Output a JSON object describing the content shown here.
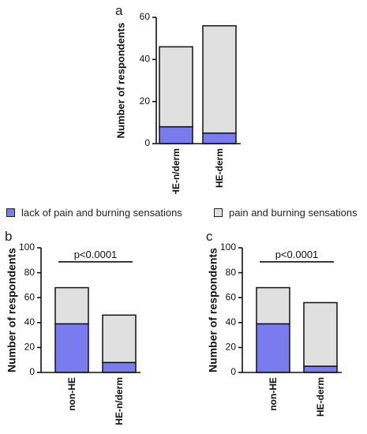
{
  "colors": {
    "lack_of_pain": "#7b7bf0",
    "pain": "#e0e0e0",
    "stroke": "#111111"
  },
  "legend": {
    "items": [
      {
        "label": "lack of pain and burning sensations",
        "color": "#7b7bf0"
      },
      {
        "label": "pain and burning sensations",
        "color": "#e0e0e0"
      }
    ]
  },
  "panel_letters": {
    "a": "a",
    "b": "b",
    "c": "c"
  },
  "chart_data": [
    {
      "id": "a",
      "type": "bar",
      "stacked": true,
      "ylabel": "Number of respondents",
      "ylim": [
        0,
        60
      ],
      "yticks": [
        0,
        20,
        40,
        60
      ],
      "categories": [
        "HE-n/derm",
        "HE-derm"
      ],
      "series": [
        {
          "name": "lack of pain and burning sensations",
          "values": [
            8,
            5
          ]
        },
        {
          "name": "pain and burning sensations",
          "values": [
            38,
            51
          ]
        }
      ],
      "annotation": ""
    },
    {
      "id": "b",
      "type": "bar",
      "stacked": true,
      "ylabel": "Number of respondents",
      "ylim": [
        0,
        100
      ],
      "yticks": [
        0,
        20,
        40,
        60,
        80,
        100
      ],
      "categories": [
        "non-HE",
        "HE-n/derm"
      ],
      "series": [
        {
          "name": "lack of pain and burning sensations",
          "values": [
            39,
            8
          ]
        },
        {
          "name": "pain and burning sensations",
          "values": [
            29,
            38
          ]
        }
      ],
      "annotation": "p<0.0001"
    },
    {
      "id": "c",
      "type": "bar",
      "stacked": true,
      "ylabel": "Number of respondents",
      "ylim": [
        0,
        100
      ],
      "yticks": [
        0,
        20,
        40,
        60,
        80,
        100
      ],
      "categories": [
        "non-HE",
        "HE-derm"
      ],
      "series": [
        {
          "name": "lack of pain and burning sensations",
          "values": [
            39,
            5
          ]
        },
        {
          "name": "pain and burning sensations",
          "values": [
            29,
            51
          ]
        }
      ],
      "annotation": "p<0.0001"
    }
  ]
}
